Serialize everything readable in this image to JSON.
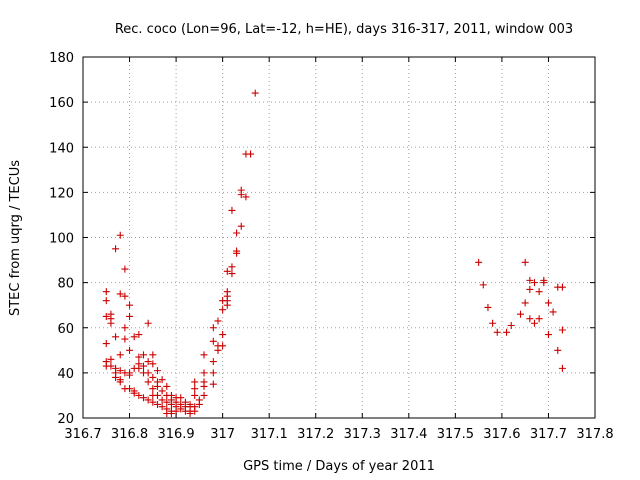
{
  "chart_data": {
    "type": "scatter",
    "title": "Rec. coco (Lon=96, Lat=-12, h=HE), days 316-317, 2011, window 003",
    "xlabel": "GPS time / Days of year 2011",
    "ylabel": "STEC from uqrg / TECUs",
    "xlim": [
      316.7,
      317.8
    ],
    "ylim": [
      20,
      180
    ],
    "xticks": [
      316.7,
      316.8,
      316.9,
      317.0,
      317.1,
      317.2,
      317.3,
      317.4,
      317.5,
      317.6,
      317.7,
      317.8
    ],
    "xtick_labels": [
      "316.7",
      "316.8",
      "316.9",
      "317",
      "317.1",
      "317.2",
      "317.3",
      "317.4",
      "317.5",
      "317.6",
      "317.7",
      "317.8"
    ],
    "yticks": [
      20,
      40,
      60,
      80,
      100,
      120,
      140,
      160,
      180
    ],
    "ytick_labels": [
      "20",
      "40",
      "60",
      "80",
      "100",
      "120",
      "140",
      "160",
      "180"
    ],
    "grid": true,
    "marker": "+",
    "color": "#cc0000",
    "points": [
      [
        316.75,
        76
      ],
      [
        316.75,
        72
      ],
      [
        316.75,
        65
      ],
      [
        316.75,
        53
      ],
      [
        316.75,
        45
      ],
      [
        316.75,
        43
      ],
      [
        316.76,
        66
      ],
      [
        316.76,
        64
      ],
      [
        316.76,
        62
      ],
      [
        316.76,
        46
      ],
      [
        316.76,
        43
      ],
      [
        316.77,
        95
      ],
      [
        316.77,
        56
      ],
      [
        316.77,
        42
      ],
      [
        316.77,
        40
      ],
      [
        316.77,
        38
      ],
      [
        316.78,
        101
      ],
      [
        316.78,
        75
      ],
      [
        316.78,
        48
      ],
      [
        316.78,
        41
      ],
      [
        316.78,
        37
      ],
      [
        316.78,
        36
      ],
      [
        316.79,
        86
      ],
      [
        316.79,
        74
      ],
      [
        316.79,
        60
      ],
      [
        316.79,
        55
      ],
      [
        316.79,
        40
      ],
      [
        316.79,
        33
      ],
      [
        316.8,
        70
      ],
      [
        316.8,
        65
      ],
      [
        316.8,
        50
      ],
      [
        316.8,
        40
      ],
      [
        316.8,
        39
      ],
      [
        316.8,
        33
      ],
      [
        316.81,
        56
      ],
      [
        316.81,
        42
      ],
      [
        316.81,
        32
      ],
      [
        316.81,
        31
      ],
      [
        316.82,
        57
      ],
      [
        316.82,
        47
      ],
      [
        316.82,
        44
      ],
      [
        316.82,
        42
      ],
      [
        316.82,
        30
      ],
      [
        316.83,
        48
      ],
      [
        316.83,
        43
      ],
      [
        316.83,
        40
      ],
      [
        316.83,
        29
      ],
      [
        316.84,
        62
      ],
      [
        316.84,
        45
      ],
      [
        316.84,
        40
      ],
      [
        316.84,
        36
      ],
      [
        316.84,
        28
      ],
      [
        316.85,
        48
      ],
      [
        316.85,
        44
      ],
      [
        316.85,
        38
      ],
      [
        316.85,
        33
      ],
      [
        316.85,
        30
      ],
      [
        316.85,
        27
      ],
      [
        316.86,
        41
      ],
      [
        316.86,
        36
      ],
      [
        316.86,
        34
      ],
      [
        316.86,
        30
      ],
      [
        316.86,
        26
      ],
      [
        316.87,
        37
      ],
      [
        316.87,
        32
      ],
      [
        316.87,
        28
      ],
      [
        316.87,
        25
      ],
      [
        316.88,
        34
      ],
      [
        316.88,
        30
      ],
      [
        316.88,
        27
      ],
      [
        316.88,
        24
      ],
      [
        316.88,
        22
      ],
      [
        316.89,
        30
      ],
      [
        316.89,
        28
      ],
      [
        316.89,
        26
      ],
      [
        316.89,
        23
      ],
      [
        316.89,
        22
      ],
      [
        316.9,
        29
      ],
      [
        316.9,
        27
      ],
      [
        316.9,
        25
      ],
      [
        316.9,
        23
      ],
      [
        316.91,
        29
      ],
      [
        316.91,
        26
      ],
      [
        316.91,
        24
      ],
      [
        316.92,
        27
      ],
      [
        316.92,
        25
      ],
      [
        316.92,
        23
      ],
      [
        316.93,
        26
      ],
      [
        316.93,
        25
      ],
      [
        316.93,
        23
      ],
      [
        316.93,
        22
      ],
      [
        316.94,
        36
      ],
      [
        316.94,
        33
      ],
      [
        316.94,
        30
      ],
      [
        316.94,
        25
      ],
      [
        316.94,
        23
      ],
      [
        316.95,
        28
      ],
      [
        316.95,
        26
      ],
      [
        316.96,
        48
      ],
      [
        316.96,
        40
      ],
      [
        316.96,
        36
      ],
      [
        316.96,
        34
      ],
      [
        316.96,
        30
      ],
      [
        316.98,
        60
      ],
      [
        316.98,
        54
      ],
      [
        316.98,
        45
      ],
      [
        316.98,
        40
      ],
      [
        316.98,
        35
      ],
      [
        316.99,
        63
      ],
      [
        316.99,
        52
      ],
      [
        316.99,
        50
      ],
      [
        317.0,
        72
      ],
      [
        317.0,
        68
      ],
      [
        317.0,
        57
      ],
      [
        317.0,
        52
      ],
      [
        317.01,
        85
      ],
      [
        317.01,
        76
      ],
      [
        317.01,
        74
      ],
      [
        317.01,
        72
      ],
      [
        317.01,
        70
      ],
      [
        317.02,
        112
      ],
      [
        317.02,
        87
      ],
      [
        317.02,
        84
      ],
      [
        317.03,
        102
      ],
      [
        317.03,
        94
      ],
      [
        317.03,
        93
      ],
      [
        317.04,
        121
      ],
      [
        317.04,
        119
      ],
      [
        317.04,
        105
      ],
      [
        317.05,
        137
      ],
      [
        317.05,
        118
      ],
      [
        317.06,
        137
      ],
      [
        317.07,
        164
      ],
      [
        317.55,
        89
      ],
      [
        317.56,
        79
      ],
      [
        317.57,
        69
      ],
      [
        317.58,
        62
      ],
      [
        317.59,
        58
      ],
      [
        317.61,
        58
      ],
      [
        317.62,
        61
      ],
      [
        317.64,
        66
      ],
      [
        317.65,
        89
      ],
      [
        317.65,
        71
      ],
      [
        317.66,
        81
      ],
      [
        317.66,
        77
      ],
      [
        317.66,
        64
      ],
      [
        317.67,
        62
      ],
      [
        317.67,
        80
      ],
      [
        317.68,
        76
      ],
      [
        317.68,
        64
      ],
      [
        317.69,
        81
      ],
      [
        317.69,
        80
      ],
      [
        317.7,
        71
      ],
      [
        317.7,
        57
      ],
      [
        317.71,
        67
      ],
      [
        317.72,
        78
      ],
      [
        317.72,
        50
      ],
      [
        317.73,
        78
      ],
      [
        317.73,
        59
      ],
      [
        317.73,
        42
      ]
    ]
  }
}
